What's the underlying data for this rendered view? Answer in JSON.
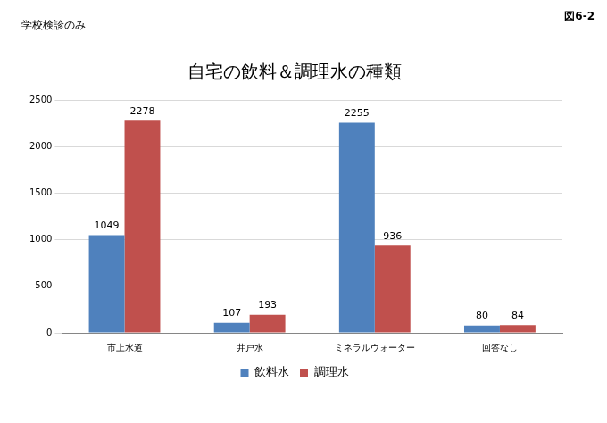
{
  "chart_data": {
    "type": "bar",
    "title": "自宅の飲料＆調理水の種類",
    "annotations": [
      "学校検診のみ",
      "図6-2"
    ],
    "categories": [
      "市上水道",
      "井戸水",
      "ミネラルウォーター",
      "回答なし"
    ],
    "series": [
      {
        "name": "飲料水",
        "color": "#4f81bd",
        "values": [
          1049,
          107,
          2255,
          80
        ]
      },
      {
        "name": "調理水",
        "color": "#c0504d",
        "values": [
          2278,
          193,
          936,
          84
        ]
      }
    ],
    "ylim": [
      0,
      2500
    ],
    "yticks": [
      0,
      500,
      1000,
      1500,
      2000,
      2500
    ],
    "grid": true,
    "legend": "bottom",
    "data_labels": true
  }
}
